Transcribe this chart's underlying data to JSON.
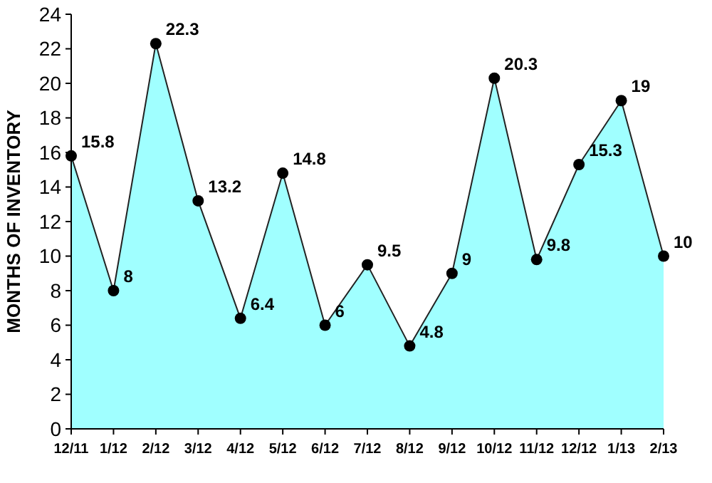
{
  "chart_data": {
    "type": "area",
    "ylabel": "MONTHS OF INVENTORY",
    "categories": [
      "12/11",
      "1/12",
      "2/12",
      "3/12",
      "4/12",
      "5/12",
      "6/12",
      "7/12",
      "8/12",
      "9/12",
      "10/12",
      "11/12",
      "12/12",
      "1/13",
      "2/13"
    ],
    "series": [
      {
        "color": "#a0ffff",
        "values": [
          15.8,
          8,
          22.3,
          13.2,
          6.4,
          14.8,
          6,
          9.5,
          4.8,
          9,
          20.3,
          9.8,
          15.3,
          19,
          10
        ]
      }
    ],
    "ylim": [
      0,
      24
    ],
    "yticks": [
      0,
      2,
      4,
      6,
      8,
      10,
      12,
      14,
      16,
      18,
      20,
      22,
      24
    ],
    "marker": "circle",
    "data_labels": true,
    "grid": false
  }
}
